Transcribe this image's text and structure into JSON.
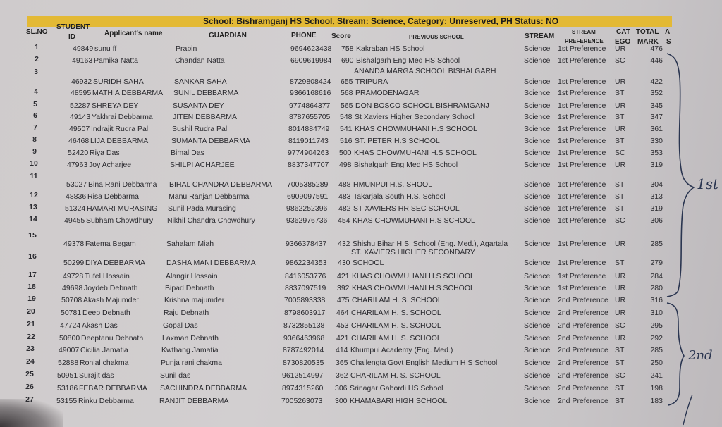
{
  "banner": "School: Bishramganj HS School, Stream: Science, Category: Unreserved, PH Status: NO",
  "headers": {
    "sl_no": "SL.NO",
    "student_id_1": "STUDENT",
    "student_id_2": "ID",
    "name": "Applicant's name",
    "guardian": "GUARDIAN",
    "phone": "PHONE",
    "score": "Score",
    "previous_school": "PREVIOUS SCHOOL",
    "stream": "STREAM",
    "stream_pref_1": "STREAM",
    "stream_pref_2": "PREFERENCE",
    "category_1": "CAT",
    "category_2": "EGO",
    "total_1": "TOTAL",
    "total_2": "MARK",
    "as_1": "A",
    "as_2": "S"
  },
  "rows": [
    {
      "sl": "1",
      "id": "49849",
      "name": "sunu ff",
      "guardian": "Prabin",
      "phone": "9694623438",
      "score": "758",
      "school": "Kakraban HS School",
      "stream": "Science",
      "pref": "1st Preference",
      "cat": "UR",
      "total": "476"
    },
    {
      "sl": "2",
      "id": "49163",
      "name": "Pamika Natta",
      "guardian": "Chandan Natta",
      "phone": "6909619984",
      "score": "690",
      "school": "Bishalgarh Eng Med HS School",
      "stream": "Science",
      "pref": "1st Preference",
      "cat": "SC",
      "total": "446"
    },
    {
      "sl": "3",
      "id": "46932",
      "name": "SURIDH SAHA",
      "guardian": "SANKAR SAHA",
      "phone": "8729808424",
      "score": "655",
      "school_prefix": "ANANDA MARGA SCHOOL BISHALGARH",
      "school": "TRIPURA",
      "stream": "Science",
      "pref": "1st Preference",
      "cat": "UR",
      "total": "422"
    },
    {
      "sl": "4",
      "id": "48595",
      "name": "MATHIA DEBBARMA",
      "guardian": "SUNIL DEBBARMA",
      "phone": "9366168616",
      "score": "568",
      "school": "PRAMODENAGAR",
      "stream": "Science",
      "pref": "1st Preference",
      "cat": "ST",
      "total": "352"
    },
    {
      "sl": "5",
      "id": "52287",
      "name": "SHREYA DEY",
      "guardian": "SUSANTA DEY",
      "phone": "9774864377",
      "score": "565",
      "school": "DON BOSCO SCHOOL BISHRAMGANJ",
      "stream": "Science",
      "pref": "1st Preference",
      "cat": "UR",
      "total": "345"
    },
    {
      "sl": "6",
      "id": "49143",
      "name": "Yakhrai Debbarma",
      "guardian": "JITEN DEBBARMA",
      "phone": "8787655705",
      "score": "548",
      "school": "St Xaviers Higher Secondary School",
      "stream": "Science",
      "pref": "1st Preference",
      "cat": "ST",
      "total": "347"
    },
    {
      "sl": "7",
      "id": "49507",
      "name": "Indrajit Rudra Pal",
      "guardian": "Sushil Rudra Pal",
      "phone": "8014884749",
      "score": "541",
      "school": "KHAS CHOWMUHANI H.S SCHOOL",
      "stream": "Science",
      "pref": "1st Preference",
      "cat": "UR",
      "total": "361"
    },
    {
      "sl": "8",
      "id": "46468",
      "name": "LIJA DEBBARMA",
      "guardian": "SUMANTA DEBBARMA",
      "phone": "8119011743",
      "score": "516",
      "school": "ST. PETER H.S SCHOOL",
      "stream": "Science",
      "pref": "1st Preference",
      "cat": "ST",
      "total": "330"
    },
    {
      "sl": "9",
      "id": "52420",
      "name": "Riya Das",
      "guardian": "Bimal Das",
      "phone": "9774904263",
      "score": "500",
      "school": "KHAS CHOWMUHANI H.S SCHOOL",
      "stream": "Science",
      "pref": "1st Preference",
      "cat": "SC",
      "total": "353"
    },
    {
      "sl": "10",
      "id": "47963",
      "name": "Joy Acharjee",
      "guardian": "SHILPI ACHARJEE",
      "phone": "8837347707",
      "score": "498",
      "school": "Bishalgarh Eng Med HS School",
      "stream": "Science",
      "pref": "1st Preference",
      "cat": "UR",
      "total": "319"
    },
    {
      "sl": "11",
      "id": "53027",
      "name": "Bina Rani Debbarma",
      "guardian": "BIHAL CHANDRA DEBBARMA",
      "phone": "7005385289",
      "score": "488",
      "school": "HMUNPUI H.S. SHOOL",
      "stream": "Science",
      "pref": "1st Preference",
      "cat": "ST",
      "total": "304"
    },
    {
      "sl": "12",
      "id": "48836",
      "name": "Risa Debbarma",
      "guardian": "Manu Ranjan Debbarma",
      "phone": "6909097591",
      "score": "483",
      "school": "Takarjala South H.S. School",
      "stream": "Science",
      "pref": "1st Preference",
      "cat": "ST",
      "total": "313"
    },
    {
      "sl": "13",
      "id": "51324",
      "name": "HAMARI MURASING",
      "guardian": "Sunil Pada Murasing",
      "phone": "9862252396",
      "score": "482",
      "school": "ST XAVIERS HR SEC SCHOOL",
      "stream": "Science",
      "pref": "1st Preference",
      "cat": "ST",
      "total": "319"
    },
    {
      "sl": "14",
      "id": "49455",
      "name": "Subham Chowdhury",
      "guardian": "Nikhil Chandra Chowdhury",
      "phone": "9362976736",
      "score": "454",
      "school": "KHAS CHOWMUHANI H.S SCHOOL",
      "stream": "Science",
      "pref": "1st Preference",
      "cat": "SC",
      "total": "306"
    },
    {
      "sl": "15",
      "id": "49378",
      "name": "Fatema Begam",
      "guardian": "Sahalam Miah",
      "phone": "9366378437",
      "score": "432",
      "school": "Shishu Bihar H.S. School (Eng. Med.), Agartala",
      "stream": "Science",
      "pref": "1st Preference",
      "cat": "UR",
      "total": "285"
    },
    {
      "sl": "16",
      "id": "50299",
      "name": "DIYA DEBBARMA",
      "guardian": "DASHA MANI DEBBARMA",
      "phone": "9862234353",
      "score": "430",
      "school_prefix": "ST. XAVIERS HIGHER SECONDARY",
      "school": "SCHOOL",
      "stream": "Science",
      "pref": "1st Preference",
      "cat": "ST",
      "total": "279"
    },
    {
      "sl": "17",
      "id": "49728",
      "name": "Tufel Hossain",
      "guardian": "Alangir Hossain",
      "phone": "8416053776",
      "score": "421",
      "school": "KHAS CHOWMUHANI H.S SCHOOL",
      "stream": "Science",
      "pref": "1st Preference",
      "cat": "UR",
      "total": "284"
    },
    {
      "sl": "18",
      "id": "49698",
      "name": "Joydeb Debnath",
      "guardian": "Bipad Debnath",
      "phone": "8837097519",
      "score": "392",
      "school": "KHAS CHOWMUHANI H.S SCHOOL",
      "stream": "Science",
      "pref": "1st Preference",
      "cat": "UR",
      "total": "280"
    },
    {
      "sl": "19",
      "id": "50708",
      "name": "Akash Majumder",
      "guardian": "Krishna majumder",
      "phone": "7005893338",
      "score": "475",
      "school": "CHARILAM H. S. SCHOOL",
      "stream": "Science",
      "pref": "2nd Preference",
      "cat": "UR",
      "total": "316"
    },
    {
      "sl": "20",
      "id": "50781",
      "name": "Deep Debnath",
      "guardian": "Raju Debnath",
      "phone": "8798603917",
      "score": "464",
      "school": "CHARILAM H. S. SCHOOL",
      "stream": "Science",
      "pref": "2nd Preference",
      "cat": "UR",
      "total": "310"
    },
    {
      "sl": "21",
      "id": "47724",
      "name": "Akash Das",
      "guardian": "Gopal Das",
      "phone": "8732855138",
      "score": "453",
      "school": "CHARILAM H. S. SCHOOL",
      "stream": "Science",
      "pref": "2nd Preference",
      "cat": "SC",
      "total": "295"
    },
    {
      "sl": "22",
      "id": "50800",
      "name": "Deeptanu Debnath",
      "guardian": "Laxman Debnath",
      "phone": "9366463968",
      "score": "421",
      "school": "CHARILAM H. S. SCHOOL",
      "stream": "Science",
      "pref": "2nd Preference",
      "cat": "UR",
      "total": "292"
    },
    {
      "sl": "23",
      "id": "49007",
      "name": "Cicilia Jamatia",
      "guardian": "Kwthang Jamatia",
      "phone": "8787492014",
      "score": "414",
      "school": "Khumpui Academy (Eng. Med.)",
      "stream": "Science",
      "pref": "2nd Preference",
      "cat": "ST",
      "total": "285"
    },
    {
      "sl": "24",
      "id": "52888",
      "name": "Ronial chakma",
      "guardian": "Punja rani chakma",
      "phone": "8730820535",
      "score": "365",
      "school": "Chailengta Govt English Medium H S School",
      "stream": "Science",
      "pref": "2nd Preference",
      "cat": "ST",
      "total": "250"
    },
    {
      "sl": "25",
      "id": "50951",
      "name": "Surajit das",
      "guardian": "Sunil das",
      "phone": "9612514997",
      "score": "362",
      "school": "CHARILAM H. S. SCHOOL",
      "stream": "Science",
      "pref": "2nd Preference",
      "cat": "SC",
      "total": "241"
    },
    {
      "sl": "26",
      "id": "53186",
      "name": "FEBAR DEBBARMA",
      "guardian": "SACHINDRA DEBBARMA",
      "phone": "8974315260",
      "score": "306",
      "school": "Srinagar Gabordi HS School",
      "stream": "Science",
      "pref": "2nd Preference",
      "cat": "ST",
      "total": "198"
    },
    {
      "sl": "27",
      "id": "53155",
      "name": "Rinku Debbarma",
      "guardian": "RANJIT DEBBARMA",
      "phone": "7005263073",
      "score": "300",
      "school": "KHAMABARI HIGH SCHOOL",
      "stream": "Science",
      "pref": "2nd Preference",
      "cat": "ST",
      "total": "183"
    }
  ],
  "annotations": {
    "first_group": "1st",
    "second_group": "2nd",
    "ink_color": "#2a3550"
  },
  "colors": {
    "banner": "#e3b935"
  }
}
